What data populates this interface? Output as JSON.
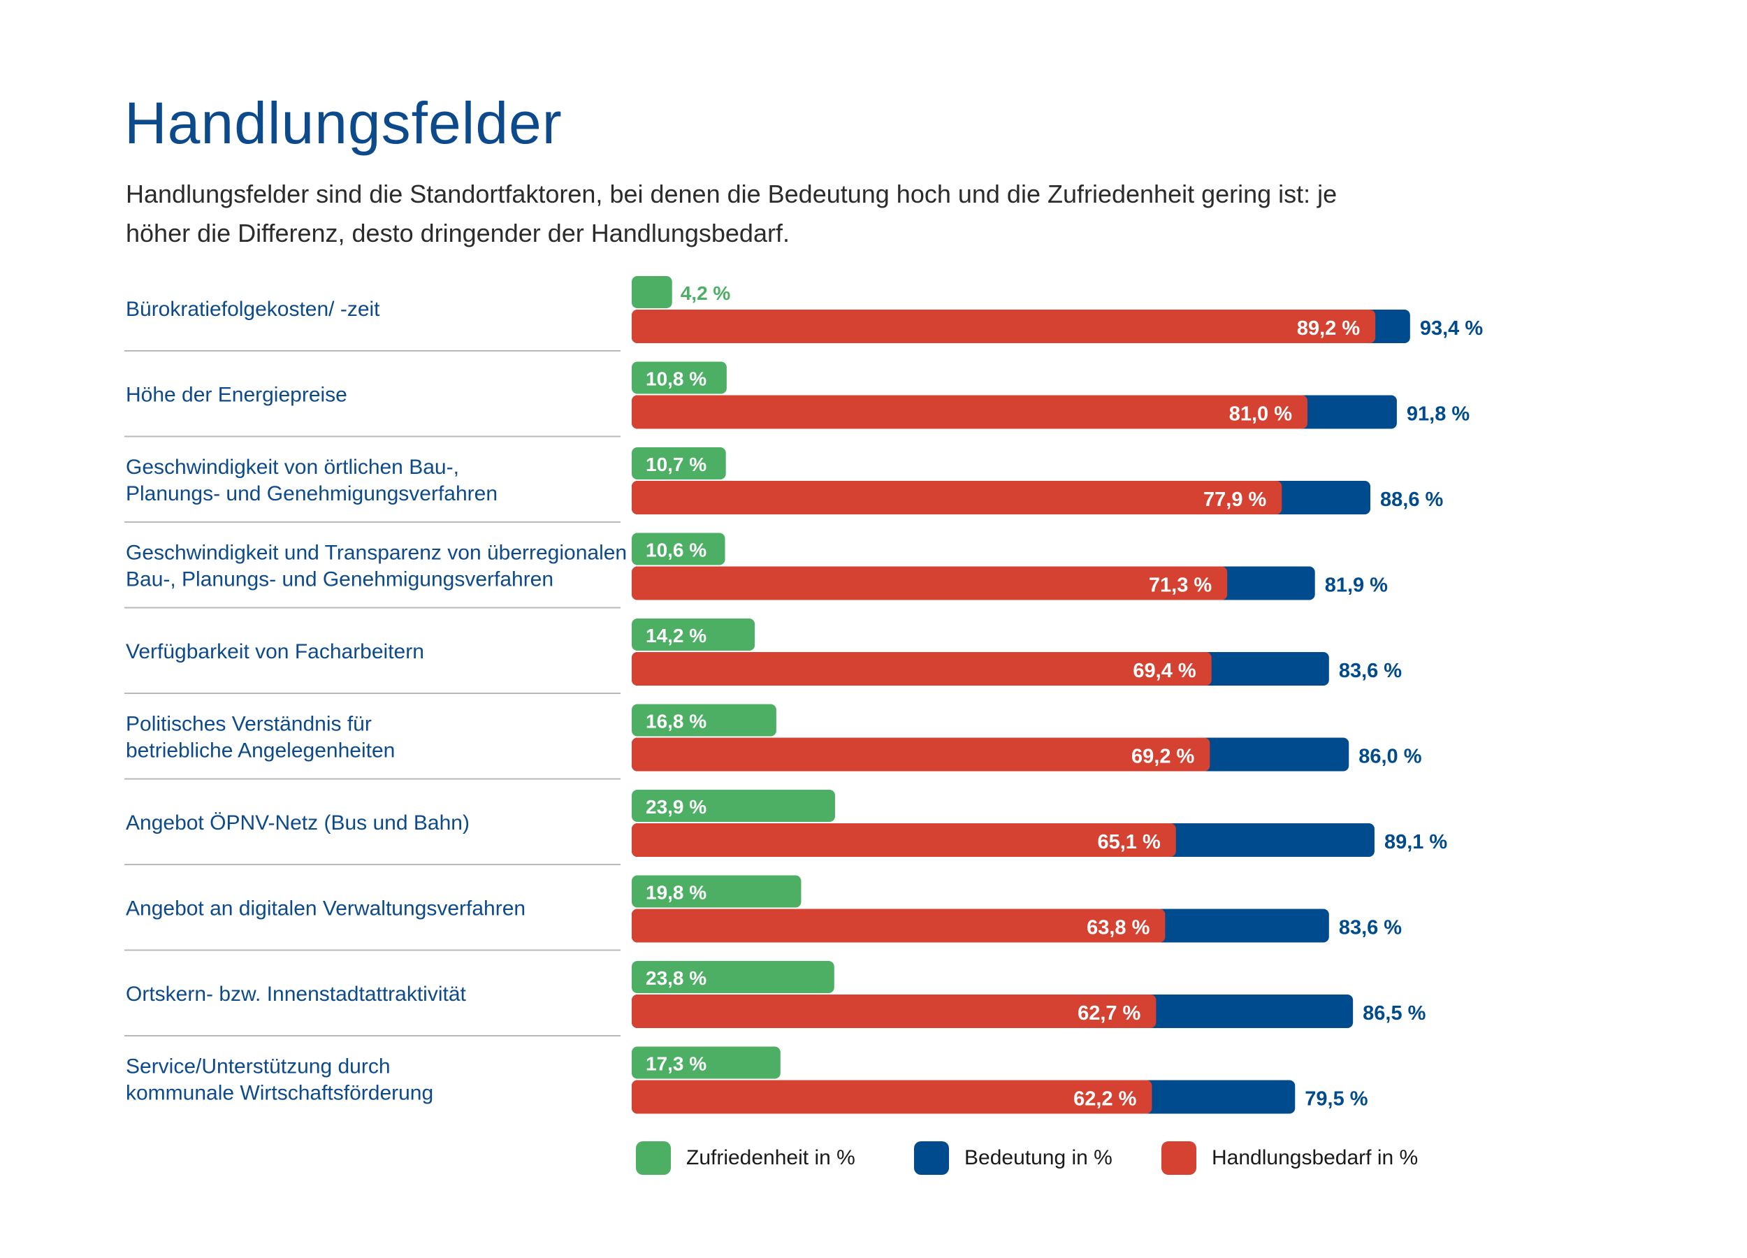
{
  "title": "Handlungsfelder",
  "subtitle": "Handlungsfelder sind die Standortfaktoren, bei denen die Bedeutung hoch und die Zufriedenheit gering ist: je höher die Differenz, desto dringender der Handlungsbedarf.",
  "colors": {
    "title": "#0d4a8c",
    "label": "#0d4a8c",
    "zufriedenheit": "#4caf64",
    "bedeutung": "#004b8d",
    "handlungsbedarf": "#d64232",
    "divider": "#b9b9b9"
  },
  "legend": {
    "zufriedenheit": "Zufriedenheit in %",
    "bedeutung": "Bedeutung in %",
    "handlungsbedarf": "Handlungsbedarf in %"
  },
  "chart_data": {
    "type": "bar",
    "orientation": "horizontal",
    "title": "Handlungsfelder",
    "unit": "%",
    "xlim": [
      0,
      100
    ],
    "grid": false,
    "legend_position": "bottom",
    "categories": [
      [
        "Bürokratiefolgekosten/ -zeit"
      ],
      [
        "Höhe der Energiepreise"
      ],
      [
        "Geschwindigkeit von örtlichen Bau-,",
        "Planungs- und Genehmigungsverfahren"
      ],
      [
        "Geschwindigkeit und Transparenz von überregionalen",
        "Bau-, Planungs- und Genehmigungsverfahren"
      ],
      [
        "Verfügbarkeit von Facharbeitern"
      ],
      [
        "Politisches Verständnis für",
        "betriebliche Angelegenheiten"
      ],
      [
        "Angebot ÖPNV-Netz (Bus und Bahn)"
      ],
      [
        "Angebot an digitalen Verwaltungsverfahren"
      ],
      [
        "Ortskern- bzw. Innenstadtattraktivität"
      ],
      [
        "Service/Unterstützung durch",
        "kommunale Wirtschaftsförderung"
      ]
    ],
    "series": [
      {
        "name": "Zufriedenheit in %",
        "values": [
          4.2,
          10.8,
          10.7,
          10.6,
          14.2,
          16.8,
          23.9,
          19.8,
          23.8,
          17.3
        ],
        "labels": [
          "4,2 %",
          "10,8 %",
          "10,7 %",
          "10,6 %",
          "14,2 %",
          "16,8 %",
          "23,9 %",
          "19,8 %",
          "23,8 %",
          "17,3 %"
        ]
      },
      {
        "name": "Bedeutung in %",
        "values": [
          93.4,
          91.8,
          88.6,
          81.9,
          83.6,
          86.0,
          89.1,
          83.6,
          86.5,
          79.5
        ],
        "labels": [
          "93,4 %",
          "91,8 %",
          "88,6 %",
          "81,9 %",
          "83,6 %",
          "86,0 %",
          "89,1 %",
          "83,6 %",
          "86,5 %",
          "79,5 %"
        ]
      },
      {
        "name": "Handlungsbedarf in %",
        "values": [
          89.2,
          81.0,
          77.9,
          71.3,
          69.4,
          69.2,
          65.1,
          63.8,
          62.7,
          62.2
        ],
        "labels": [
          "89,2 %",
          "81,0 %",
          "77,9 %",
          "71,3 %",
          "69,4 %",
          "69,2 %",
          "65,1 %",
          "63,8 %",
          "62,7 %",
          "62,2 %"
        ]
      }
    ]
  }
}
